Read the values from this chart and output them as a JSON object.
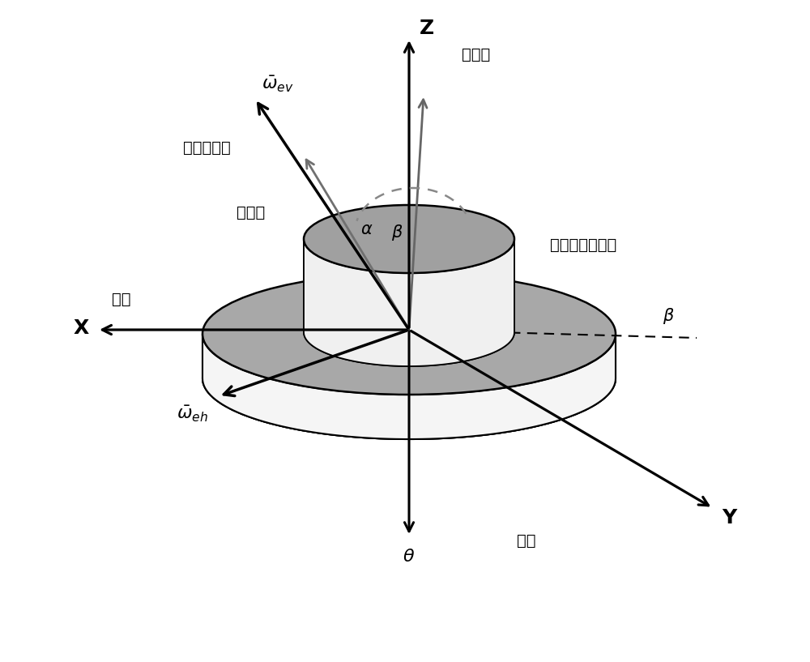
{
  "bg_color": "#ffffff",
  "figsize": [
    10.0,
    8.17
  ],
  "dpi": 100,
  "colors": {
    "black": "#000000",
    "dark_gray": "#404040",
    "mid_gray": "#808080",
    "light_gray": "#b0b0b0",
    "white": "#ffffff",
    "cyl_top": "#a0a0a0",
    "cyl_side_light": "#f0f0f0",
    "cyl_side_dark": "#c8c8c8",
    "disk_top": "#909090",
    "disk_side_light": "#ffffff",
    "disk_side_dark": "#d0d0d0",
    "inner_cyl_top": "#989898",
    "inner_cyl_side": "#e8e8e8",
    "inner_cyl_back": "#c0c0c0",
    "dashed_col": "#888888",
    "arrow_gray": "#666666",
    "sens_gray": "#707070"
  },
  "labels": {
    "Z": "Z",
    "X": "X",
    "Y": "Y",
    "huizhuanzhou": "回转轴",
    "beixiang": "北向",
    "zhuantai": "转台",
    "shuru_jizhunshu": "输入基准轴",
    "minganzhu": "敏感轴",
    "jiguang_label": "激光陀螺测角仪"
  }
}
